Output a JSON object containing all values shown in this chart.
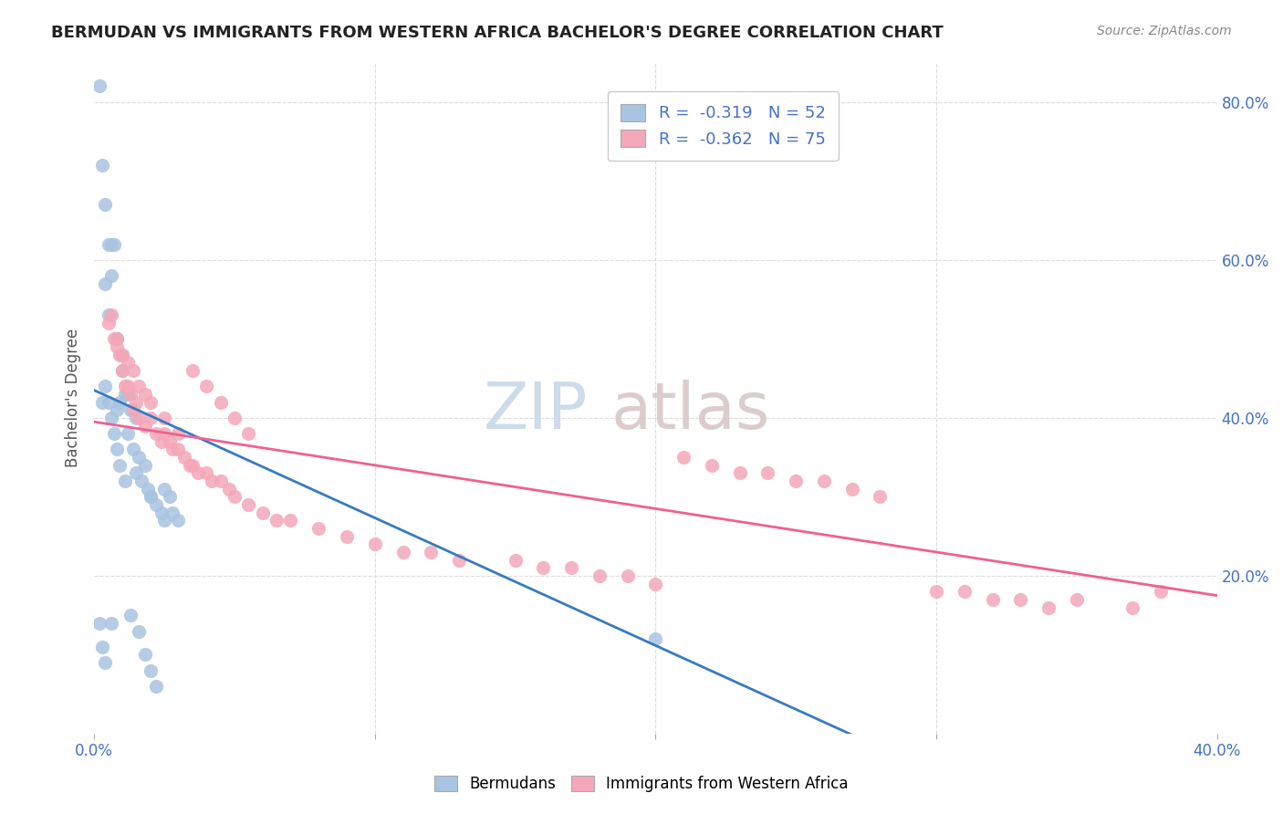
{
  "title": "BERMUDAN VS IMMIGRANTS FROM WESTERN AFRICA BACHELOR'S DEGREE CORRELATION CHART",
  "source": "Source: ZipAtlas.com",
  "ylabel": "Bachelor's Degree",
  "xlim": [
    0.0,
    0.4
  ],
  "ylim": [
    0.0,
    0.85
  ],
  "blue_color": "#a8c4e0",
  "pink_color": "#f4a7b9",
  "blue_line_color": "#3a7abf",
  "pink_line_color": "#f06090",
  "legend_r1_val": "-0.319",
  "legend_n1_val": "52",
  "legend_r2_val": "-0.362",
  "legend_n2_val": "75",
  "watermark_zip": "ZIP",
  "watermark_atlas": "atlas",
  "blue_scatter_x": [
    0.002,
    0.003,
    0.004,
    0.005,
    0.004,
    0.005,
    0.006,
    0.007,
    0.006,
    0.008,
    0.01,
    0.01,
    0.012,
    0.008,
    0.009,
    0.011,
    0.013,
    0.015,
    0.012,
    0.014,
    0.016,
    0.018,
    0.015,
    0.017,
    0.019,
    0.02,
    0.02,
    0.022,
    0.024,
    0.025,
    0.025,
    0.027,
    0.028,
    0.03,
    0.003,
    0.004,
    0.005,
    0.006,
    0.007,
    0.008,
    0.009,
    0.011,
    0.013,
    0.016,
    0.018,
    0.02,
    0.022,
    0.2,
    0.002,
    0.003,
    0.004,
    0.006
  ],
  "blue_scatter_y": [
    0.82,
    0.72,
    0.67,
    0.62,
    0.57,
    0.53,
    0.62,
    0.62,
    0.58,
    0.5,
    0.48,
    0.46,
    0.43,
    0.41,
    0.42,
    0.43,
    0.41,
    0.4,
    0.38,
    0.36,
    0.35,
    0.34,
    0.33,
    0.32,
    0.31,
    0.3,
    0.3,
    0.29,
    0.28,
    0.27,
    0.31,
    0.3,
    0.28,
    0.27,
    0.42,
    0.44,
    0.42,
    0.4,
    0.38,
    0.36,
    0.34,
    0.32,
    0.15,
    0.13,
    0.1,
    0.08,
    0.06,
    0.12,
    0.14,
    0.11,
    0.09,
    0.14
  ],
  "pink_scatter_x": [
    0.005,
    0.007,
    0.008,
    0.01,
    0.009,
    0.011,
    0.013,
    0.015,
    0.012,
    0.014,
    0.016,
    0.018,
    0.02,
    0.022,
    0.024,
    0.025,
    0.027,
    0.028,
    0.03,
    0.032,
    0.034,
    0.035,
    0.037,
    0.04,
    0.042,
    0.045,
    0.048,
    0.05,
    0.055,
    0.06,
    0.065,
    0.07,
    0.08,
    0.09,
    0.1,
    0.11,
    0.12,
    0.13,
    0.15,
    0.16,
    0.17,
    0.18,
    0.19,
    0.2,
    0.21,
    0.22,
    0.23,
    0.24,
    0.25,
    0.26,
    0.27,
    0.28,
    0.3,
    0.31,
    0.32,
    0.33,
    0.34,
    0.35,
    0.37,
    0.38,
    0.006,
    0.008,
    0.01,
    0.012,
    0.014,
    0.016,
    0.018,
    0.02,
    0.025,
    0.03,
    0.035,
    0.04,
    0.045,
    0.05,
    0.055
  ],
  "pink_scatter_y": [
    0.52,
    0.5,
    0.49,
    0.46,
    0.48,
    0.44,
    0.43,
    0.42,
    0.44,
    0.41,
    0.4,
    0.39,
    0.4,
    0.38,
    0.37,
    0.38,
    0.37,
    0.36,
    0.36,
    0.35,
    0.34,
    0.34,
    0.33,
    0.33,
    0.32,
    0.32,
    0.31,
    0.3,
    0.29,
    0.28,
    0.27,
    0.27,
    0.26,
    0.25,
    0.24,
    0.23,
    0.23,
    0.22,
    0.22,
    0.21,
    0.21,
    0.2,
    0.2,
    0.19,
    0.35,
    0.34,
    0.33,
    0.33,
    0.32,
    0.32,
    0.31,
    0.3,
    0.18,
    0.18,
    0.17,
    0.17,
    0.16,
    0.17,
    0.16,
    0.18,
    0.53,
    0.5,
    0.48,
    0.47,
    0.46,
    0.44,
    0.43,
    0.42,
    0.4,
    0.38,
    0.46,
    0.44,
    0.42,
    0.4,
    0.38
  ],
  "blue_line_x": [
    0.0,
    0.3
  ],
  "blue_line_y": [
    0.435,
    -0.05
  ],
  "pink_line_x": [
    0.0,
    0.4
  ],
  "pink_line_y": [
    0.395,
    0.175
  ],
  "background_color": "#ffffff",
  "grid_color": "#dddddd"
}
